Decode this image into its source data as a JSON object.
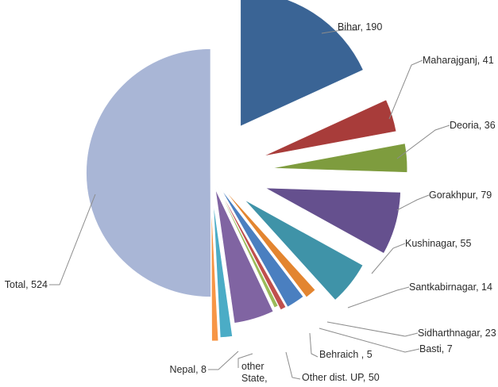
{
  "chart_data": {
    "type": "pie",
    "variant": "exploded-pie",
    "categories": [
      "Bihar",
      "Maharajganj",
      "Deoria",
      "Gorakhpur",
      "Kushinagar",
      "Santkabirnagar",
      "Sidharthnagar",
      "Basti",
      "Behraich",
      "Other dist. UP",
      "other State,",
      "Nepal",
      "Total"
    ],
    "values": [
      190,
      41,
      36,
      79,
      55,
      14,
      23,
      7,
      5,
      50,
      15,
      8,
      524
    ],
    "data_labels": [
      "Bihar, 190",
      "Maharajganj, 41",
      "Deoria, 36",
      "Gorakhpur, 79",
      "Kushinagar, 55",
      "Santkabirnagar, 14",
      "Sidharthnagar, 23",
      "Basti, 7",
      "Behraich , 5",
      "Other dist. UP, 50",
      [
        "other",
        "State,"
      ],
      "Nepal, 8",
      "Total, 524"
    ],
    "colors": [
      "#3a6495",
      "#a83c3a",
      "#7e9c3e",
      "#65508e",
      "#3f93a8",
      "#e38530",
      "#4a7fc0",
      "#c0504d",
      "#9bbb59",
      "#8064a2",
      "#4bacc6",
      "#f79646",
      "#a9b6d6"
    ],
    "legend": "none"
  }
}
